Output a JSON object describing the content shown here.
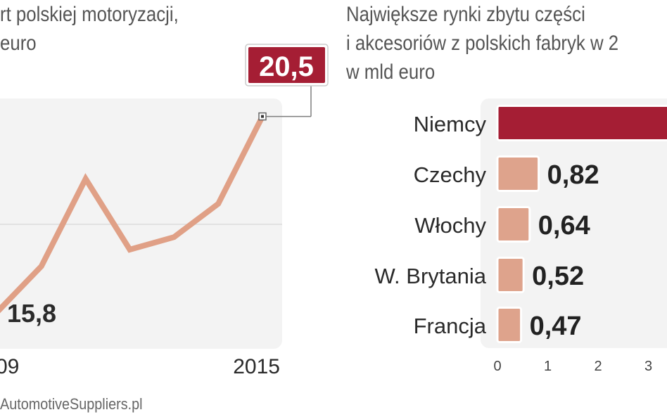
{
  "left_chart": {
    "title_lines": [
      "rt polskiej motoryzacji,",
      "euro"
    ],
    "source": "AutomotiveSuppliers.pl"
  },
  "right_chart": {
    "title_lines": [
      "Największe rynki zbytu części",
      "i akcesoriów z polskich fabryk w 2",
      "w mld euro"
    ]
  },
  "colors": {
    "line": "#e0a086",
    "highlight": "#a51e34",
    "bar": "#dea38c",
    "panel": "#f3f3f3",
    "title_text": "#555555",
    "label_text": "#2a2a2a"
  },
  "chart_data": [
    {
      "type": "line",
      "x": [
        2009,
        2010,
        2011,
        2012,
        2013,
        2014,
        2015
      ],
      "values": [
        15.8,
        16.9,
        19.0,
        17.3,
        17.6,
        18.4,
        20.5
      ],
      "xtick_labels": [
        "09",
        "2015"
      ],
      "ylim": [
        15.0,
        21.0
      ],
      "data_labels": [
        {
          "x": 2009,
          "label": "15,8"
        },
        {
          "x": 2015,
          "label": "20,5",
          "highlight": true
        }
      ],
      "grid": true,
      "xlabel": "",
      "ylabel": ""
    },
    {
      "type": "bar",
      "orientation": "horizontal",
      "categories": [
        "Niemcy",
        "Czechy",
        "Włochy",
        "W. Brytania",
        "Francja"
      ],
      "values": [
        4.2,
        0.82,
        0.64,
        0.52,
        0.47
      ],
      "value_labels": [
        "",
        "0,82",
        "0,64",
        "0,52",
        "0,47"
      ],
      "xticks": [
        0,
        1,
        2,
        3
      ],
      "xlim": [
        0,
        4.5
      ],
      "xlabel": "",
      "ylabel": ""
    }
  ]
}
